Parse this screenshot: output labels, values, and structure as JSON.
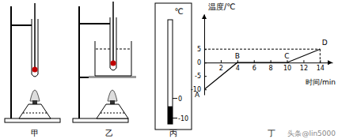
{
  "panels": [
    {
      "label": "甲"
    },
    {
      "label": "乙"
    },
    {
      "label": "丙",
      "thermometer": {
        "unit": "℃",
        "range": [
          -13,
          40
        ],
        "ticks": [
          0,
          -10
        ],
        "reading": -4
      }
    },
    {
      "label": "丁"
    }
  ],
  "chart_data": {
    "type": "line",
    "x_label": "时间/min",
    "y_label": "温度/℃",
    "x": [
      0,
      4,
      10,
      14
    ],
    "values": [
      -10,
      0,
      0,
      5
    ],
    "point_labels": [
      "A",
      "B",
      "C",
      "D"
    ],
    "color": "#000000",
    "line_style": "solid",
    "xlim": [
      0,
      15.5
    ],
    "ylim": [
      -12,
      18
    ],
    "xticks": [
      2,
      4,
      6,
      8,
      10,
      12,
      14
    ],
    "yticks": [
      -10,
      -5,
      0,
      5
    ]
  },
  "watermark": "头条@lin5000"
}
